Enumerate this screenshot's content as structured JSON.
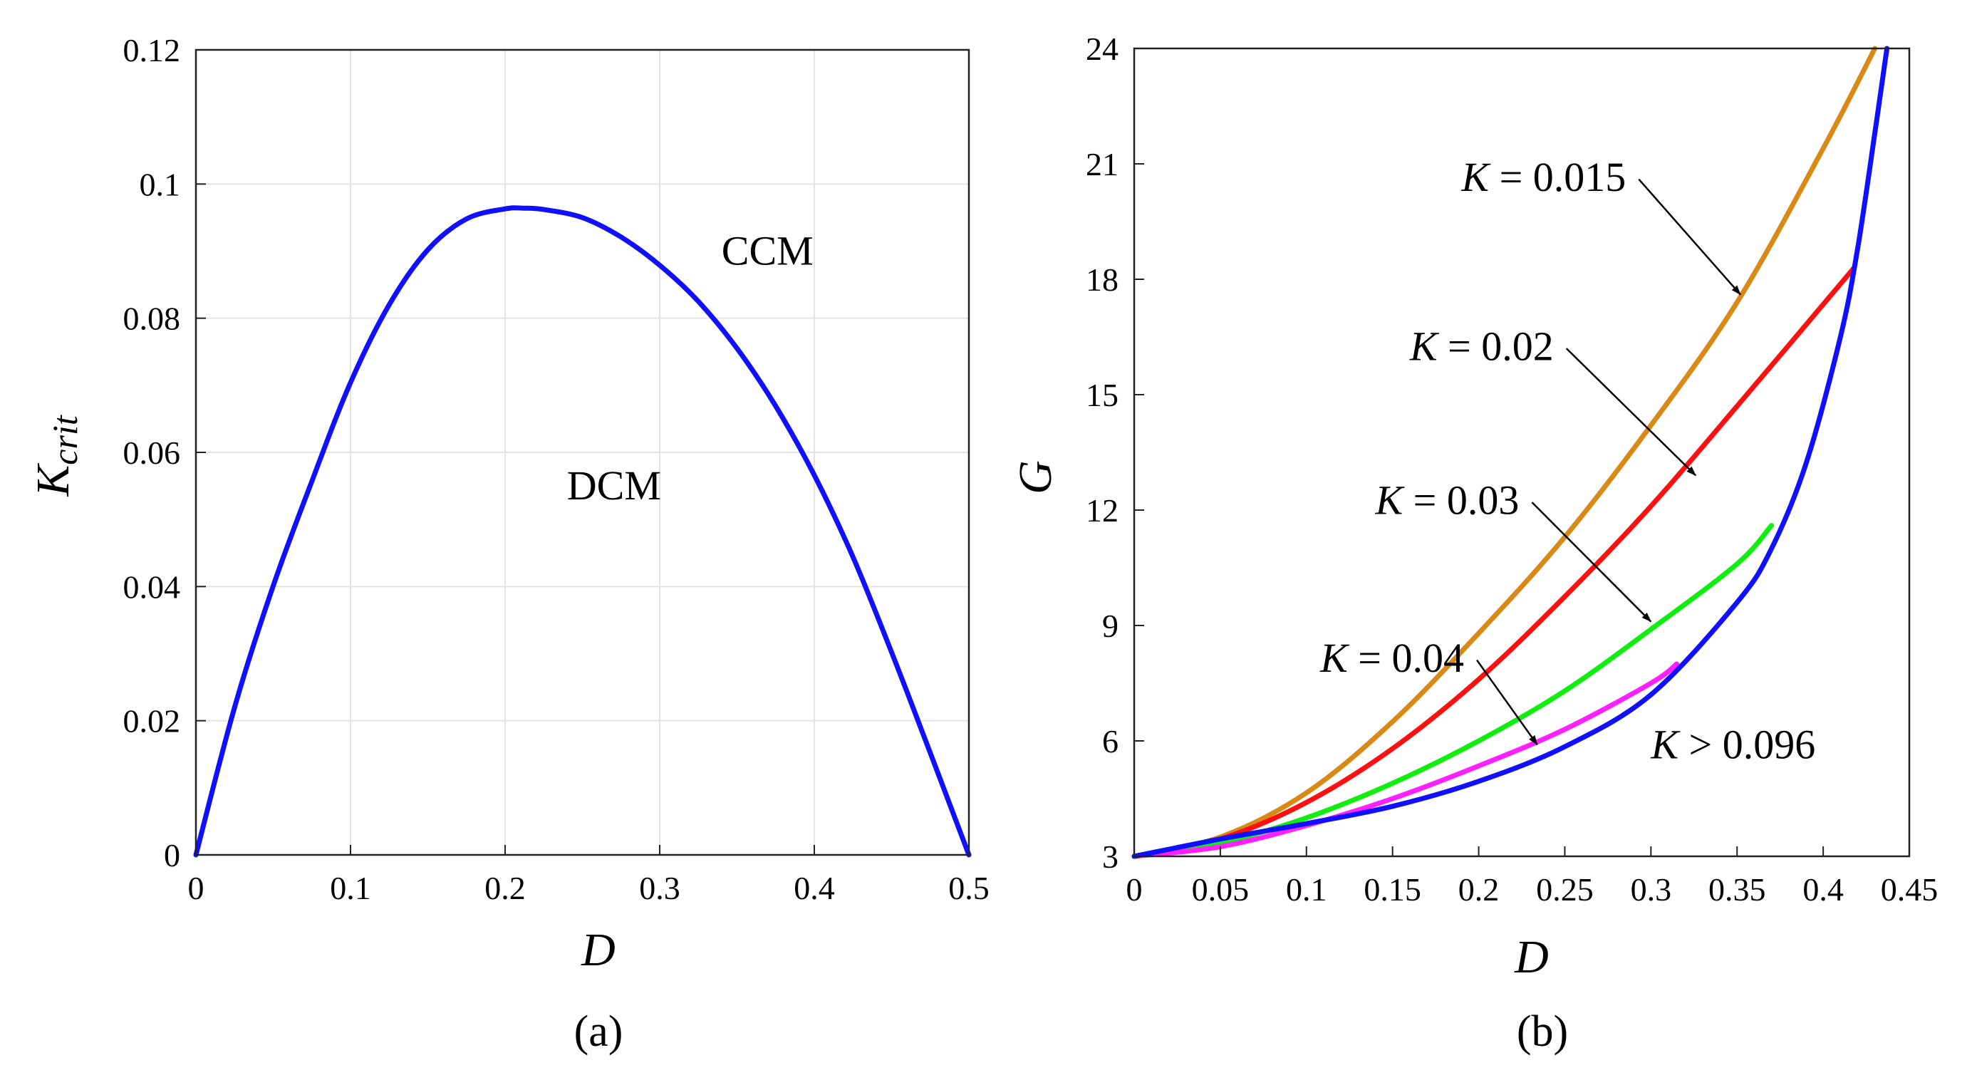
{
  "chart_data": [
    {
      "type": "line",
      "panel": "(a)",
      "xlabel": "D",
      "ylabel": {
        "main": "K",
        "sub": "crit"
      },
      "xlim": [
        0,
        0.5
      ],
      "ylim": [
        0,
        0.12
      ],
      "x_ticks": [
        "0",
        "0.1",
        "0.2",
        "0.3",
        "0.4",
        "0.5"
      ],
      "y_ticks": [
        "0",
        "0.02",
        "0.04",
        "0.06",
        "0.08",
        "0.1",
        "0.12"
      ],
      "grid": true,
      "annotations": [
        {
          "text": "CCM",
          "x": 0.34,
          "y": 0.088
        },
        {
          "text": "DCM",
          "x": 0.24,
          "y": 0.053
        }
      ],
      "series": [
        {
          "color": "#1010ff",
          "points": [
            [
              0,
              0
            ],
            [
              0.025,
              0.022
            ],
            [
              0.05,
              0.0401
            ],
            [
              0.075,
              0.0557
            ],
            [
              0.1,
              0.0704
            ],
            [
              0.125,
              0.082
            ],
            [
              0.15,
              0.0902
            ],
            [
              0.175,
              0.0948
            ],
            [
              0.2,
              0.0963
            ],
            [
              0.212,
              0.0964
            ],
            [
              0.225,
              0.0962
            ],
            [
              0.25,
              0.095
            ],
            [
              0.275,
              0.0921
            ],
            [
              0.3,
              0.0879
            ],
            [
              0.325,
              0.0825
            ],
            [
              0.35,
              0.0755
            ],
            [
              0.375,
              0.0669
            ],
            [
              0.4,
              0.0566
            ],
            [
              0.425,
              0.0444
            ],
            [
              0.45,
              0.0302
            ],
            [
              0.475,
              0.0152
            ],
            [
              0.5,
              0
            ]
          ]
        }
      ]
    },
    {
      "type": "line",
      "panel": "(b)",
      "xlabel": "D",
      "ylabel": "G",
      "xlim": [
        0,
        0.45
      ],
      "ylim": [
        3,
        24
      ],
      "x_ticks": [
        "0",
        "0.05",
        "0.1",
        "0.15",
        "0.2",
        "0.25",
        "0.3",
        "0.35",
        "0.4",
        "0.45"
      ],
      "y_ticks": [
        "3",
        "6",
        "9",
        "12",
        "15",
        "18",
        "21",
        "24"
      ],
      "grid": false,
      "series": [
        {
          "label": "K = 0.015",
          "color": "#d98a16",
          "points": [
            [
              0,
              3
            ],
            [
              0.05,
              3.5
            ],
            [
              0.1,
              4.65
            ],
            [
              0.15,
              6.5
            ],
            [
              0.2,
              8.8
            ],
            [
              0.25,
              11.3
            ],
            [
              0.3,
              14.2
            ],
            [
              0.35,
              17.4
            ],
            [
              0.4,
              21.4
            ],
            [
              0.43,
              24
            ]
          ]
        },
        {
          "label": "K = 0.02",
          "color": "#ff1010",
          "points": [
            [
              0,
              3
            ],
            [
              0.05,
              3.45
            ],
            [
              0.1,
              4.4
            ],
            [
              0.15,
              5.8
            ],
            [
              0.2,
              7.6
            ],
            [
              0.25,
              9.75
            ],
            [
              0.3,
              12.1
            ],
            [
              0.35,
              14.7
            ],
            [
              0.418,
              18.3
            ]
          ]
        },
        {
          "label": "K = 0.03",
          "color": "#10ee10",
          "points": [
            [
              0,
              3
            ],
            [
              0.05,
              3.35
            ],
            [
              0.1,
              4.0
            ],
            [
              0.15,
              4.9
            ],
            [
              0.2,
              6.0
            ],
            [
              0.25,
              7.3
            ],
            [
              0.3,
              8.9
            ],
            [
              0.35,
              10.6
            ],
            [
              0.37,
              11.6
            ]
          ]
        },
        {
          "label": "K = 0.04",
          "color": "#ff20ff",
          "points": [
            [
              0,
              3
            ],
            [
              0.05,
              3.25
            ],
            [
              0.1,
              3.8
            ],
            [
              0.15,
              4.5
            ],
            [
              0.2,
              5.35
            ],
            [
              0.25,
              6.3
            ],
            [
              0.3,
              7.5
            ],
            [
              0.315,
              8.0
            ]
          ]
        },
        {
          "label": "K > 0.096",
          "color": "#1010ff",
          "points": [
            [
              0,
              3
            ],
            [
              0.05,
              3.45
            ],
            [
              0.1,
              3.85
            ],
            [
              0.15,
              4.3
            ],
            [
              0.2,
              4.95
            ],
            [
              0.25,
              5.85
            ],
            [
              0.3,
              7.2
            ],
            [
              0.35,
              9.6
            ],
            [
              0.37,
              11.0
            ],
            [
              0.39,
              13.2
            ],
            [
              0.41,
              16.5
            ],
            [
              0.42,
              18.8
            ],
            [
              0.43,
              21.8
            ],
            [
              0.437,
              24
            ]
          ]
        }
      ],
      "annotations": [
        {
          "text": "K = 0.015",
          "x": 0.19,
          "y": 20.3,
          "arrow_to": [
            0.352,
            17.6
          ]
        },
        {
          "text": "K = 0.02",
          "x": 0.16,
          "y": 15.9,
          "arrow_to": [
            0.326,
            12.9
          ]
        },
        {
          "text": "K = 0.03",
          "x": 0.14,
          "y": 11.9,
          "arrow_to": [
            0.3,
            9.1
          ]
        },
        {
          "text": "K = 0.04",
          "x": 0.108,
          "y": 7.8,
          "arrow_to": [
            0.234,
            5.9
          ]
        },
        {
          "text": "K > 0.096",
          "x": 0.3,
          "y": 5.55
        }
      ]
    }
  ]
}
